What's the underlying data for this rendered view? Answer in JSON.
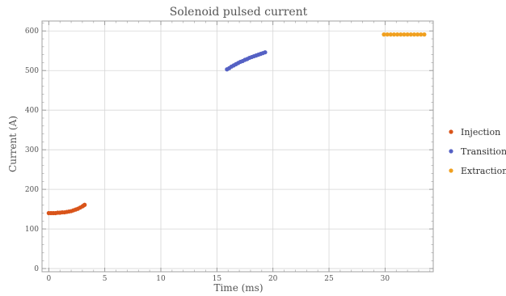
{
  "chart_data": {
    "type": "scatter",
    "title": "Solenoid pulsed current",
    "xlabel": "Time (ms)",
    "ylabel": "Current (A)",
    "xlim": [
      -0.6,
      34.3
    ],
    "ylim": [
      -8,
      625
    ],
    "xticks": [
      0,
      5,
      10,
      15,
      20,
      25,
      30
    ],
    "yticks": [
      0,
      100,
      200,
      300,
      400,
      500,
      600
    ],
    "grid": true,
    "legend_position": "right",
    "series": [
      {
        "name": "Injection",
        "color": "#d9541a",
        "points": [
          [
            0.0,
            140
          ],
          [
            0.2,
            140
          ],
          [
            0.4,
            140
          ],
          [
            0.6,
            140
          ],
          [
            0.8,
            141
          ],
          [
            1.0,
            141
          ],
          [
            1.2,
            142
          ],
          [
            1.4,
            142
          ],
          [
            1.6,
            143
          ],
          [
            1.8,
            144
          ],
          [
            2.0,
            145
          ],
          [
            2.2,
            147
          ],
          [
            2.4,
            149
          ],
          [
            2.6,
            151
          ],
          [
            2.8,
            154
          ],
          [
            3.0,
            157
          ],
          [
            3.1,
            159
          ],
          [
            3.2,
            161
          ]
        ]
      },
      {
        "name": "Transition",
        "color": "#5561c4",
        "points": [
          [
            15.9,
            503
          ],
          [
            16.1,
            506
          ],
          [
            16.3,
            510
          ],
          [
            16.5,
            513
          ],
          [
            16.7,
            516
          ],
          [
            16.9,
            519
          ],
          [
            17.1,
            522
          ],
          [
            17.3,
            524
          ],
          [
            17.5,
            527
          ],
          [
            17.7,
            529
          ],
          [
            17.9,
            532
          ],
          [
            18.1,
            534
          ],
          [
            18.3,
            536
          ],
          [
            18.5,
            538
          ],
          [
            18.7,
            540
          ],
          [
            18.9,
            542
          ],
          [
            19.1,
            544
          ],
          [
            19.3,
            546
          ]
        ]
      },
      {
        "name": "Extraction",
        "color": "#f0a020",
        "points": [
          [
            29.9,
            591
          ],
          [
            30.2,
            591
          ],
          [
            30.5,
            591
          ],
          [
            30.8,
            591
          ],
          [
            31.1,
            591
          ],
          [
            31.4,
            591
          ],
          [
            31.7,
            591
          ],
          [
            32.0,
            591
          ],
          [
            32.3,
            591
          ],
          [
            32.6,
            591
          ],
          [
            32.9,
            591
          ],
          [
            33.2,
            591
          ],
          [
            33.5,
            591
          ]
        ]
      }
    ]
  }
}
